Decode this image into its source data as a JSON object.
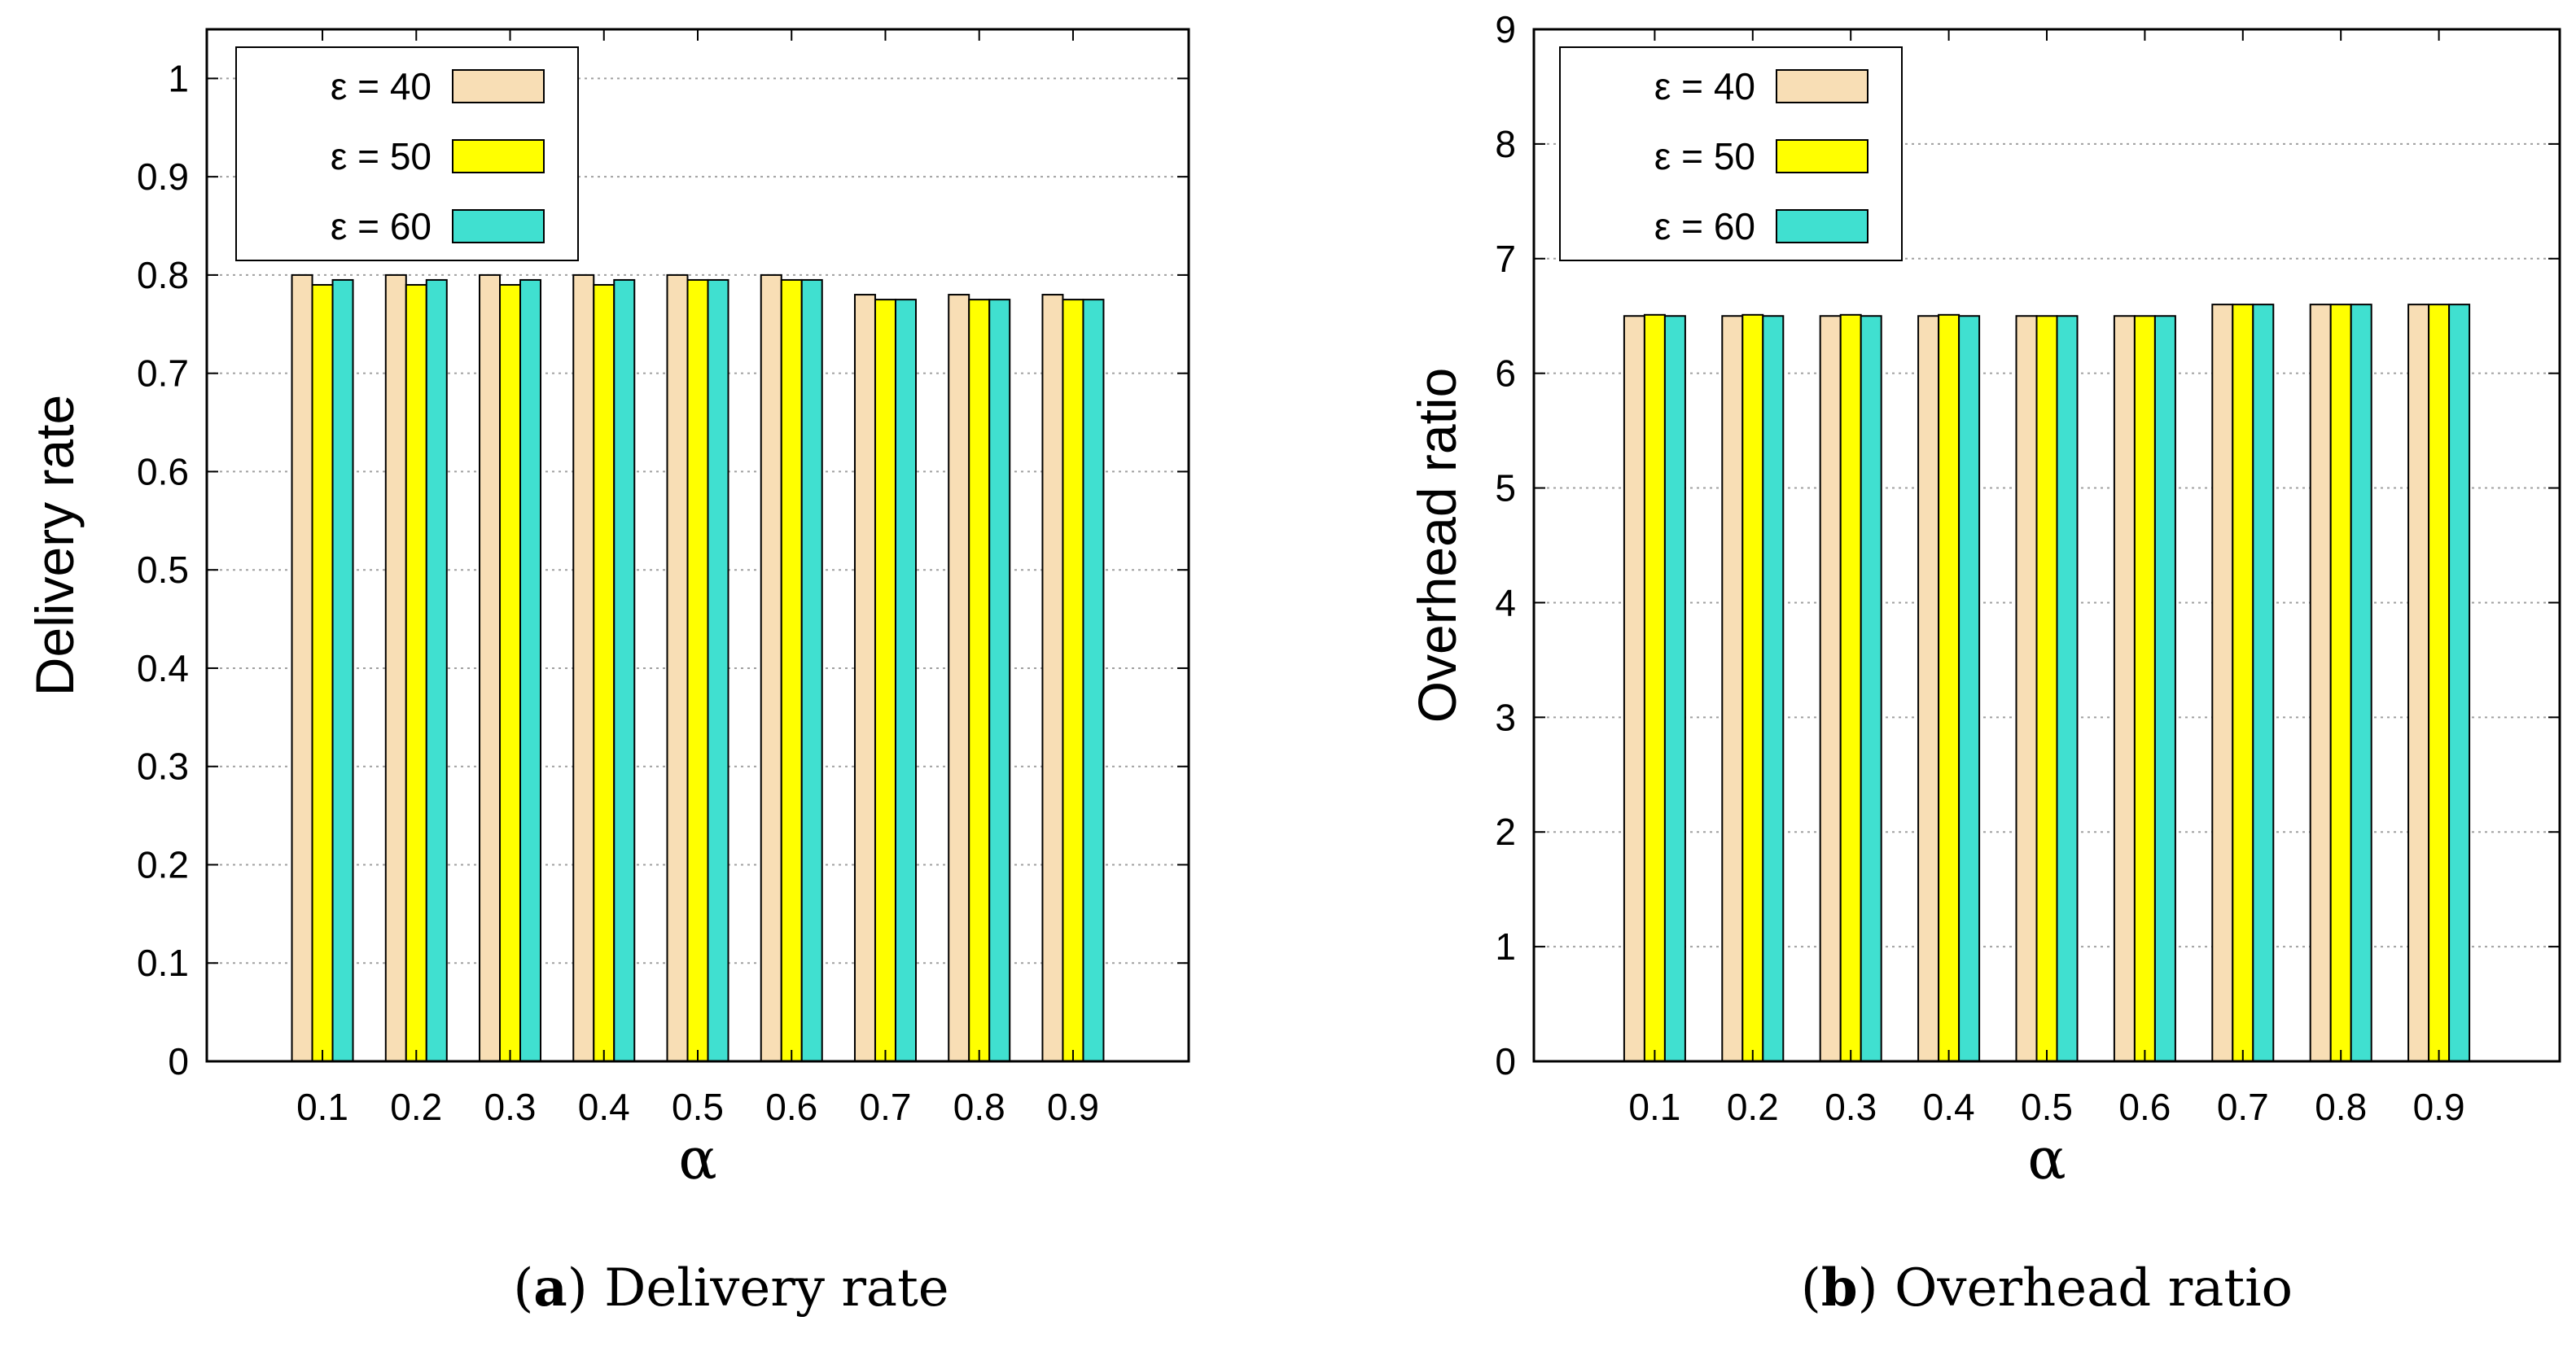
{
  "chart_data": [
    {
      "type": "bar",
      "panel": "a",
      "categories": [
        "0.1",
        "0.2",
        "0.3",
        "0.4",
        "0.5",
        "0.6",
        "0.7",
        "0.8",
        "0.9"
      ],
      "series": [
        {
          "name": "ε = 40",
          "color": "#f8deb5",
          "values": [
            0.8,
            0.8,
            0.8,
            0.8,
            0.8,
            0.8,
            0.78,
            0.78,
            0.78
          ]
        },
        {
          "name": "ε = 50",
          "color": "#ffff00",
          "values": [
            0.79,
            0.79,
            0.79,
            0.79,
            0.795,
            0.795,
            0.775,
            0.775,
            0.775
          ]
        },
        {
          "name": "ε = 60",
          "color": "#40e0d0",
          "values": [
            0.795,
            0.795,
            0.795,
            0.795,
            0.795,
            0.795,
            0.775,
            0.775,
            0.775
          ]
        }
      ],
      "xlabel": "α",
      "ylabel": "Delivery rate",
      "ylim": [
        0,
        1.05
      ],
      "yticks": [
        "0",
        "0.1",
        "0.2",
        "0.3",
        "0.4",
        "0.5",
        "0.6",
        "0.7",
        "0.8",
        "0.9",
        "1"
      ],
      "ytick_values": [
        0,
        0.1,
        0.2,
        0.3,
        0.4,
        0.5,
        0.6,
        0.7,
        0.8,
        0.9,
        1
      ],
      "grid": true,
      "legend": "top-left",
      "caption_label": "a",
      "caption_text": "Delivery rate"
    },
    {
      "type": "bar",
      "panel": "b",
      "categories": [
        "0.1",
        "0.2",
        "0.3",
        "0.4",
        "0.5",
        "0.6",
        "0.7",
        "0.8",
        "0.9"
      ],
      "series": [
        {
          "name": "ε = 40",
          "color": "#f8deb5",
          "values": [
            6.5,
            6.5,
            6.5,
            6.5,
            6.5,
            6.5,
            6.6,
            6.6,
            6.6
          ]
        },
        {
          "name": "ε = 50",
          "color": "#ffff00",
          "values": [
            6.51,
            6.51,
            6.51,
            6.51,
            6.5,
            6.5,
            6.6,
            6.6,
            6.6
          ]
        },
        {
          "name": "ε = 60",
          "color": "#40e0d0",
          "values": [
            6.5,
            6.5,
            6.5,
            6.5,
            6.5,
            6.5,
            6.6,
            6.6,
            6.6
          ]
        }
      ],
      "xlabel": "α",
      "ylabel": "Overhead ratio",
      "ylim": [
        0,
        9
      ],
      "yticks": [
        "0",
        "1",
        "2",
        "3",
        "4",
        "5",
        "6",
        "7",
        "8",
        "9"
      ],
      "ytick_values": [
        0,
        1,
        2,
        3,
        4,
        5,
        6,
        7,
        8,
        9
      ],
      "grid": true,
      "legend": "top-left",
      "caption_label": "b",
      "caption_text": "Overhead ratio"
    }
  ]
}
